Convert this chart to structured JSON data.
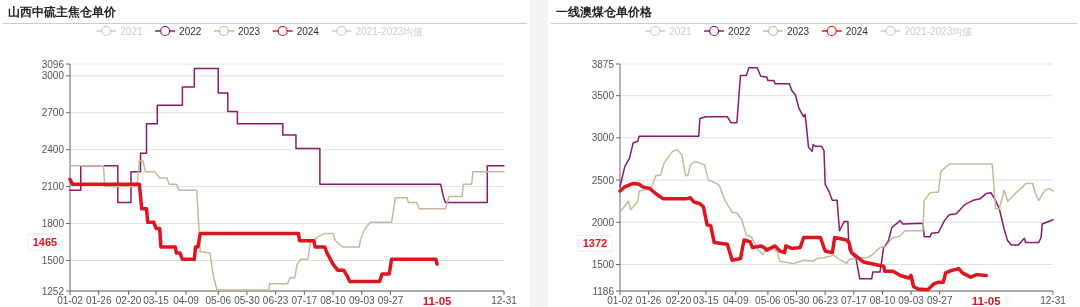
{
  "chart_data": [
    {
      "type": "line",
      "title": "山西中硫主焦仓单价",
      "legend": "top",
      "grid": "y",
      "xlim": [
        "--01-02",
        "--12-31"
      ],
      "xticks": [
        {
          "value": "--01-02",
          "label": "01-02"
        },
        {
          "value": "--01-26",
          "label": "01-26"
        },
        {
          "value": "--02-20",
          "label": "02-20"
        },
        {
          "value": "--03-15",
          "label": "03-15"
        },
        {
          "value": "--04-09",
          "label": "04-09"
        },
        {
          "value": "--05-06",
          "label": "05-06"
        },
        {
          "value": "--05-30",
          "label": "05-30"
        },
        {
          "value": "--06-23",
          "label": "06-23"
        },
        {
          "value": "--07-17",
          "label": "07-17"
        },
        {
          "value": "--08-10",
          "label": "08-10"
        },
        {
          "value": "--09-03",
          "label": "09-03"
        },
        {
          "value": "--09-27",
          "label": "09-27"
        },
        {
          "value": "--12-31",
          "label": "12-31"
        }
      ],
      "ylim": [
        1252,
        3096
      ],
      "yticks": [
        1252,
        1500,
        1800,
        2100,
        2400,
        2700,
        3000,
        3096
      ],
      "annotations": [
        "1465",
        "11-05"
      ],
      "series": [
        {
          "name": "2021",
          "color": "#cccccc"
        },
        {
          "name": "2022",
          "color": "#8b1a6b",
          "x": [
            "--01-02",
            "--01-11",
            "--01-11",
            "--02-11",
            "--02-11",
            "--02-22",
            "--02-22",
            "--03-02",
            "--03-02",
            "--03-07",
            "--03-07",
            "--03-16",
            "--03-16",
            "--04-06",
            "--04-06",
            "--04-16",
            "--04-16",
            "--05-06",
            "--05-06",
            "--05-14",
            "--05-14",
            "--05-22",
            "--05-22",
            "--06-29",
            "--06-29",
            "--07-10",
            "--07-10",
            "--07-30",
            "--07-30",
            "--11-08",
            "--11-10",
            "--11-12",
            "--12-17",
            "--12-17",
            "--12-31"
          ],
          "values": [
            2070,
            2070,
            2270,
            2270,
            1970,
            1970,
            2220,
            2220,
            2370,
            2370,
            2610,
            2610,
            2760,
            2760,
            2910,
            2910,
            3060,
            3060,
            2860,
            2860,
            2710,
            2710,
            2610,
            2610,
            2520,
            2520,
            2410,
            2410,
            2120,
            2120,
            2030,
            1970,
            1970,
            2270,
            2270
          ]
        },
        {
          "name": "2023",
          "color": "#c8b8a0",
          "x": [
            "--01-02",
            "--01-30",
            "--01-31",
            "--02-27",
            "--03-01",
            "--03-04",
            "--03-06",
            "--03-14",
            "--03-18",
            "--03-24",
            "--03-26",
            "--04-01",
            "--04-03",
            "--04-18",
            "--04-21",
            "--04-29",
            "--05-02",
            "--05-05",
            "--06-17",
            "--06-18",
            "--07-03",
            "--07-05",
            "--07-09",
            "--07-11",
            "--07-14",
            "--07-20",
            "--07-22",
            "--07-28",
            "--08-03",
            "--08-10",
            "--08-12",
            "--08-18",
            "--09-01",
            "--09-02",
            "--09-06",
            "--09-10",
            "--09-28",
            "--10-01",
            "--10-11",
            "--10-12",
            "--10-19",
            "--10-21",
            "--11-12",
            "--11-15",
            "--11-26",
            "--11-27",
            "--12-04",
            "--12-05",
            "--12-31"
          ],
          "values": [
            2270,
            2270,
            2100,
            2100,
            2310,
            2310,
            2220,
            2220,
            2170,
            2170,
            2120,
            2120,
            2070,
            2070,
            1570,
            1560,
            1370,
            1260,
            1260,
            1310,
            1310,
            1360,
            1360,
            1470,
            1510,
            1510,
            1650,
            1690,
            1720,
            1720,
            1660,
            1610,
            1610,
            1670,
            1760,
            1810,
            1810,
            2010,
            2010,
            1970,
            1970,
            1920,
            1920,
            2020,
            2020,
            2120,
            2120,
            2220,
            2220
          ]
        },
        {
          "name": "2024",
          "color": "#e0141e",
          "x": [
            "--01-02",
            "--01-04",
            "--03-01",
            "--03-03",
            "--03-07",
            "--03-08",
            "--03-13",
            "--03-15",
            "--03-18",
            "--03-19",
            "--03-31",
            "--04-01",
            "--04-04",
            "--04-06",
            "--04-16",
            "--04-17",
            "--04-19",
            "--04-21",
            "--07-12",
            "--07-13",
            "--07-25",
            "--07-26",
            "--08-03",
            "--08-05",
            "--08-10",
            "--08-14",
            "--08-19",
            "--08-22",
            "--08-24",
            "--09-18",
            "--09-20",
            "--09-26",
            "--09-28",
            "--11-04",
            "--11-05"
          ],
          "values": [
            2160,
            2120,
            2120,
            1920,
            1920,
            1810,
            1810,
            1760,
            1760,
            1610,
            1610,
            1560,
            1560,
            1510,
            1510,
            1610,
            1610,
            1720,
            1720,
            1660,
            1660,
            1610,
            1610,
            1560,
            1470,
            1420,
            1420,
            1370,
            1330,
            1330,
            1390,
            1390,
            1510,
            1510,
            1470
          ]
        },
        {
          "name": "2021-2023均值",
          "color": "#cccccc"
        }
      ]
    },
    {
      "type": "line",
      "title": "一线澳煤仓单价格",
      "legend": "top",
      "grid": "y",
      "xlim": [
        "--01-02",
        "--12-31"
      ],
      "xticks": [
        {
          "value": "--01-02",
          "label": "01-02"
        },
        {
          "value": "--01-26",
          "label": "01-26"
        },
        {
          "value": "--02-20",
          "label": "02-20"
        },
        {
          "value": "--03-15",
          "label": "03-15"
        },
        {
          "value": "--04-09",
          "label": "04-09"
        },
        {
          "value": "--05-06",
          "label": "05-06"
        },
        {
          "value": "--05-30",
          "label": "05-30"
        },
        {
          "value": "--06-23",
          "label": "06-23"
        },
        {
          "value": "--07-17",
          "label": "07-17"
        },
        {
          "value": "--08-10",
          "label": "08-10"
        },
        {
          "value": "--09-03",
          "label": "09-03"
        },
        {
          "value": "--09-27",
          "label": "09-27"
        },
        {
          "value": "--12-31",
          "label": "12-31"
        }
      ],
      "ylim": [
        1186,
        3875
      ],
      "yticks": [
        1186,
        1500,
        2000,
        2500,
        3000,
        3500,
        3875
      ],
      "annotations": [
        "1372",
        "11-05"
      ],
      "series": [
        {
          "name": "2021",
          "color": "#cccccc"
        },
        {
          "name": "2022",
          "color": "#8b1a6b",
          "x": [
            "--01-02",
            "--01-06",
            "--01-10",
            "--01-13",
            "--01-17",
            "--01-18",
            "--03-09",
            "--03-10",
            "--03-15",
            "--04-02",
            "--04-05",
            "--04-10",
            "--04-13",
            "--04-18",
            "--04-20",
            "--04-27",
            "--04-30",
            "--05-05",
            "--05-06",
            "--05-11",
            "--05-12",
            "--05-24",
            "--05-26",
            "--05-29",
            "--06-01",
            "--06-05",
            "--06-06",
            "--06-07",
            "--06-09",
            "--06-12",
            "--06-13",
            "--06-15",
            "--06-20",
            "--06-22",
            "--06-23",
            "--06-26",
            "--06-29",
            "--07-03",
            "--07-05",
            "--07-09",
            "--07-12",
            "--07-13",
            "--07-19",
            "--07-22",
            "--08-01",
            "--08-02",
            "--08-08",
            "--08-11",
            "--08-15",
            "--08-18",
            "--08-25",
            "--08-27",
            "--09-13",
            "--09-14",
            "--09-19",
            "--09-20",
            "--09-26",
            "--10-01",
            "--10-05",
            "--10-11",
            "--10-18",
            "--10-25",
            "--10-31",
            "--11-05",
            "--11-09",
            "--11-12",
            "--11-16",
            "--11-20",
            "--11-23",
            "--11-26",
            "--12-02",
            "--12-07",
            "--12-08",
            "--12-19",
            "--12-21",
            "--12-22",
            "--12-31"
          ],
          "values": [
            2420,
            2660,
            2760,
            2940,
            2960,
            3020,
            3020,
            3230,
            3250,
            3250,
            3180,
            3180,
            3740,
            3740,
            3830,
            3830,
            3730,
            3720,
            3680,
            3680,
            3640,
            3640,
            3560,
            3510,
            3350,
            3250,
            3280,
            3180,
            2890,
            2840,
            2920,
            2900,
            2900,
            2850,
            2450,
            2370,
            2260,
            2260,
            1900,
            2010,
            2010,
            1680,
            1560,
            1330,
            1330,
            1410,
            1410,
            1700,
            1780,
            1940,
            2020,
            1980,
            1990,
            1830,
            1830,
            1870,
            1880,
            2020,
            2090,
            2100,
            2210,
            2260,
            2280,
            2340,
            2350,
            2280,
            2160,
            1920,
            1780,
            1730,
            1730,
            1810,
            1760,
            1760,
            1820,
            1980,
            2030
          ]
        },
        {
          "name": "2023",
          "color": "#c8b8a0",
          "x": [
            "--01-02",
            "--01-09",
            "--01-11",
            "--01-17",
            "--01-18",
            "--01-28",
            "--02-01",
            "--02-05",
            "--02-08",
            "--02-15",
            "--02-19",
            "--02-23",
            "--02-26",
            "--02-28",
            "--03-02",
            "--03-06",
            "--03-14",
            "--03-17",
            "--03-21",
            "--03-26",
            "--03-31",
            "--04-06",
            "--04-10",
            "--04-14",
            "--04-18",
            "--04-22",
            "--04-28",
            "--05-02",
            "--05-05",
            "--05-11",
            "--05-14",
            "--05-16",
            "--05-27",
            "--06-05",
            "--06-13",
            "--06-16",
            "--06-22",
            "--06-30",
            "--07-05",
            "--07-11",
            "--07-13",
            "--07-21",
            "--07-28",
            "--08-01",
            "--08-08",
            "--08-13",
            "--08-18",
            "--08-25",
            "--08-29",
            "--09-13",
            "--09-14",
            "--09-19",
            "--09-26",
            "--09-28",
            "--10-05",
            "--11-10",
            "--11-13",
            "--11-16",
            "--11-20",
            "--11-23",
            "--11-26",
            "--11-30",
            "--12-05",
            "--12-08",
            "--12-14",
            "--12-16",
            "--12-19",
            "--12-22",
            "--12-25",
            "--12-28",
            "--12-31"
          ],
          "values": [
            2120,
            2250,
            2150,
            2250,
            2370,
            2400,
            2550,
            2560,
            2700,
            2840,
            2860,
            2800,
            2550,
            2560,
            2680,
            2720,
            2680,
            2500,
            2480,
            2440,
            2260,
            2120,
            2110,
            2030,
            1850,
            1830,
            1670,
            1620,
            1700,
            1690,
            1640,
            1540,
            1510,
            1550,
            1540,
            1570,
            1580,
            1610,
            1560,
            1510,
            1560,
            1580,
            1580,
            1610,
            1700,
            1720,
            1810,
            1840,
            1900,
            1900,
            2260,
            2350,
            2360,
            2600,
            2690,
            2690,
            2160,
            2160,
            2380,
            2250,
            2290,
            2350,
            2410,
            2460,
            2460,
            2350,
            2260,
            2330,
            2390,
            2400,
            2370
          ]
        },
        {
          "name": "2024",
          "color": "#e0141e",
          "x": [
            "--01-02",
            "--01-06",
            "--01-11",
            "--01-14",
            "--01-18",
            "--01-21",
            "--01-27",
            "--01-31",
            "--02-04",
            "--02-07",
            "--02-27",
            "--03-02",
            "--03-05",
            "--03-10",
            "--03-13",
            "--03-16",
            "--03-19",
            "--03-22",
            "--04-02",
            "--04-06",
            "--04-13",
            "--04-16",
            "--04-21",
            "--04-23",
            "--04-30",
            "--05-03",
            "--05-05",
            "--05-12",
            "--05-16",
            "--05-20",
            "--05-21",
            "--05-26",
            "--06-02",
            "--06-05",
            "--06-19",
            "--06-23",
            "--06-29",
            "--07-01",
            "--07-11",
            "--07-13",
            "--07-15",
            "--07-19",
            "--07-25",
            "--08-11",
            "--08-12",
            "--08-19",
            "--08-25",
            "--09-01",
            "--09-03",
            "--09-05",
            "--09-09",
            "--09-17",
            "--09-22",
            "--09-26",
            "--09-30",
            "--10-02",
            "--10-07",
            "--10-13",
            "--10-16",
            "--10-23",
            "--10-28",
            "--11-05"
          ],
          "values": [
            2370,
            2420,
            2450,
            2460,
            2450,
            2420,
            2400,
            2350,
            2310,
            2280,
            2280,
            2290,
            2240,
            2220,
            2180,
            1970,
            1960,
            1760,
            1740,
            1550,
            1570,
            1790,
            1770,
            1700,
            1720,
            1700,
            1670,
            1720,
            1660,
            1640,
            1720,
            1690,
            1700,
            1820,
            1820,
            1660,
            1640,
            1820,
            1790,
            1760,
            1640,
            1600,
            1530,
            1480,
            1420,
            1420,
            1370,
            1340,
            1370,
            1240,
            1210,
            1200,
            1270,
            1290,
            1290,
            1400,
            1430,
            1450,
            1400,
            1350,
            1380,
            1370
          ]
        },
        {
          "name": "2021-2023均值",
          "color": "#cccccc"
        }
      ]
    }
  ]
}
